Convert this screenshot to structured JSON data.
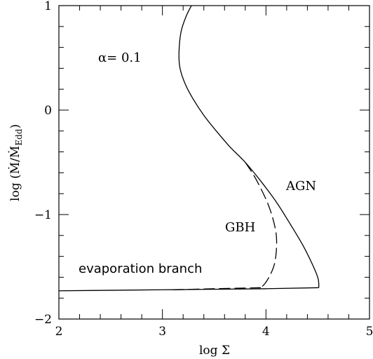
{
  "chart_data": {
    "type": "line",
    "title": "",
    "xlabel": "log Σ",
    "ylabel_main": "log (",
    "ylabel_num": "Ṁ",
    "ylabel_den": "Ṁ",
    "ylabel_sub": "Edd",
    "ylabel_close": ")",
    "xlim": [
      2,
      5
    ],
    "ylim": [
      -2,
      1
    ],
    "x_ticks": [
      2,
      3,
      4,
      5
    ],
    "y_ticks": [
      -2,
      -1,
      0,
      1
    ],
    "x_tick_labels": [
      "2",
      "3",
      "4",
      "5"
    ],
    "y_tick_labels": [
      "−2",
      "−1",
      "0",
      "1"
    ],
    "grid": false,
    "annotations": {
      "alpha": "α= 0.1",
      "agn": "AGN",
      "gbh": "GBH",
      "evaporation": "evaporation branch"
    },
    "series": [
      {
        "name": "AGN",
        "style": "solid",
        "x": [
          3.28,
          3.23,
          3.18,
          3.16,
          3.17,
          3.22,
          3.3,
          3.4,
          3.52,
          3.65,
          3.8,
          3.95,
          4.1,
          4.24,
          4.36,
          4.45,
          4.5,
          4.51,
          4.51
        ],
        "y": [
          1.0,
          0.9,
          0.75,
          0.55,
          0.4,
          0.25,
          0.1,
          -0.05,
          -0.2,
          -0.35,
          -0.5,
          -0.68,
          -0.88,
          -1.1,
          -1.3,
          -1.48,
          -1.6,
          -1.66,
          -1.7
        ]
      },
      {
        "name": "GBH",
        "style": "dashed",
        "x": [
          3.8,
          3.88,
          3.95,
          4.02,
          4.07,
          4.1,
          4.1,
          4.08,
          4.04,
          3.99,
          3.95
        ],
        "y": [
          -0.5,
          -0.62,
          -0.75,
          -0.9,
          -1.05,
          -1.2,
          -1.35,
          -1.48,
          -1.58,
          -1.66,
          -1.7
        ]
      },
      {
        "name": "evaporation branch AGN",
        "style": "solid",
        "x": [
          2.0,
          3.0,
          4.0,
          4.51
        ],
        "y": [
          -1.73,
          -1.72,
          -1.71,
          -1.7
        ]
      },
      {
        "name": "evaporation branch GBH",
        "style": "dashed",
        "x": [
          3.1,
          3.5,
          3.95
        ],
        "y": [
          -1.72,
          -1.71,
          -1.7
        ]
      }
    ]
  }
}
